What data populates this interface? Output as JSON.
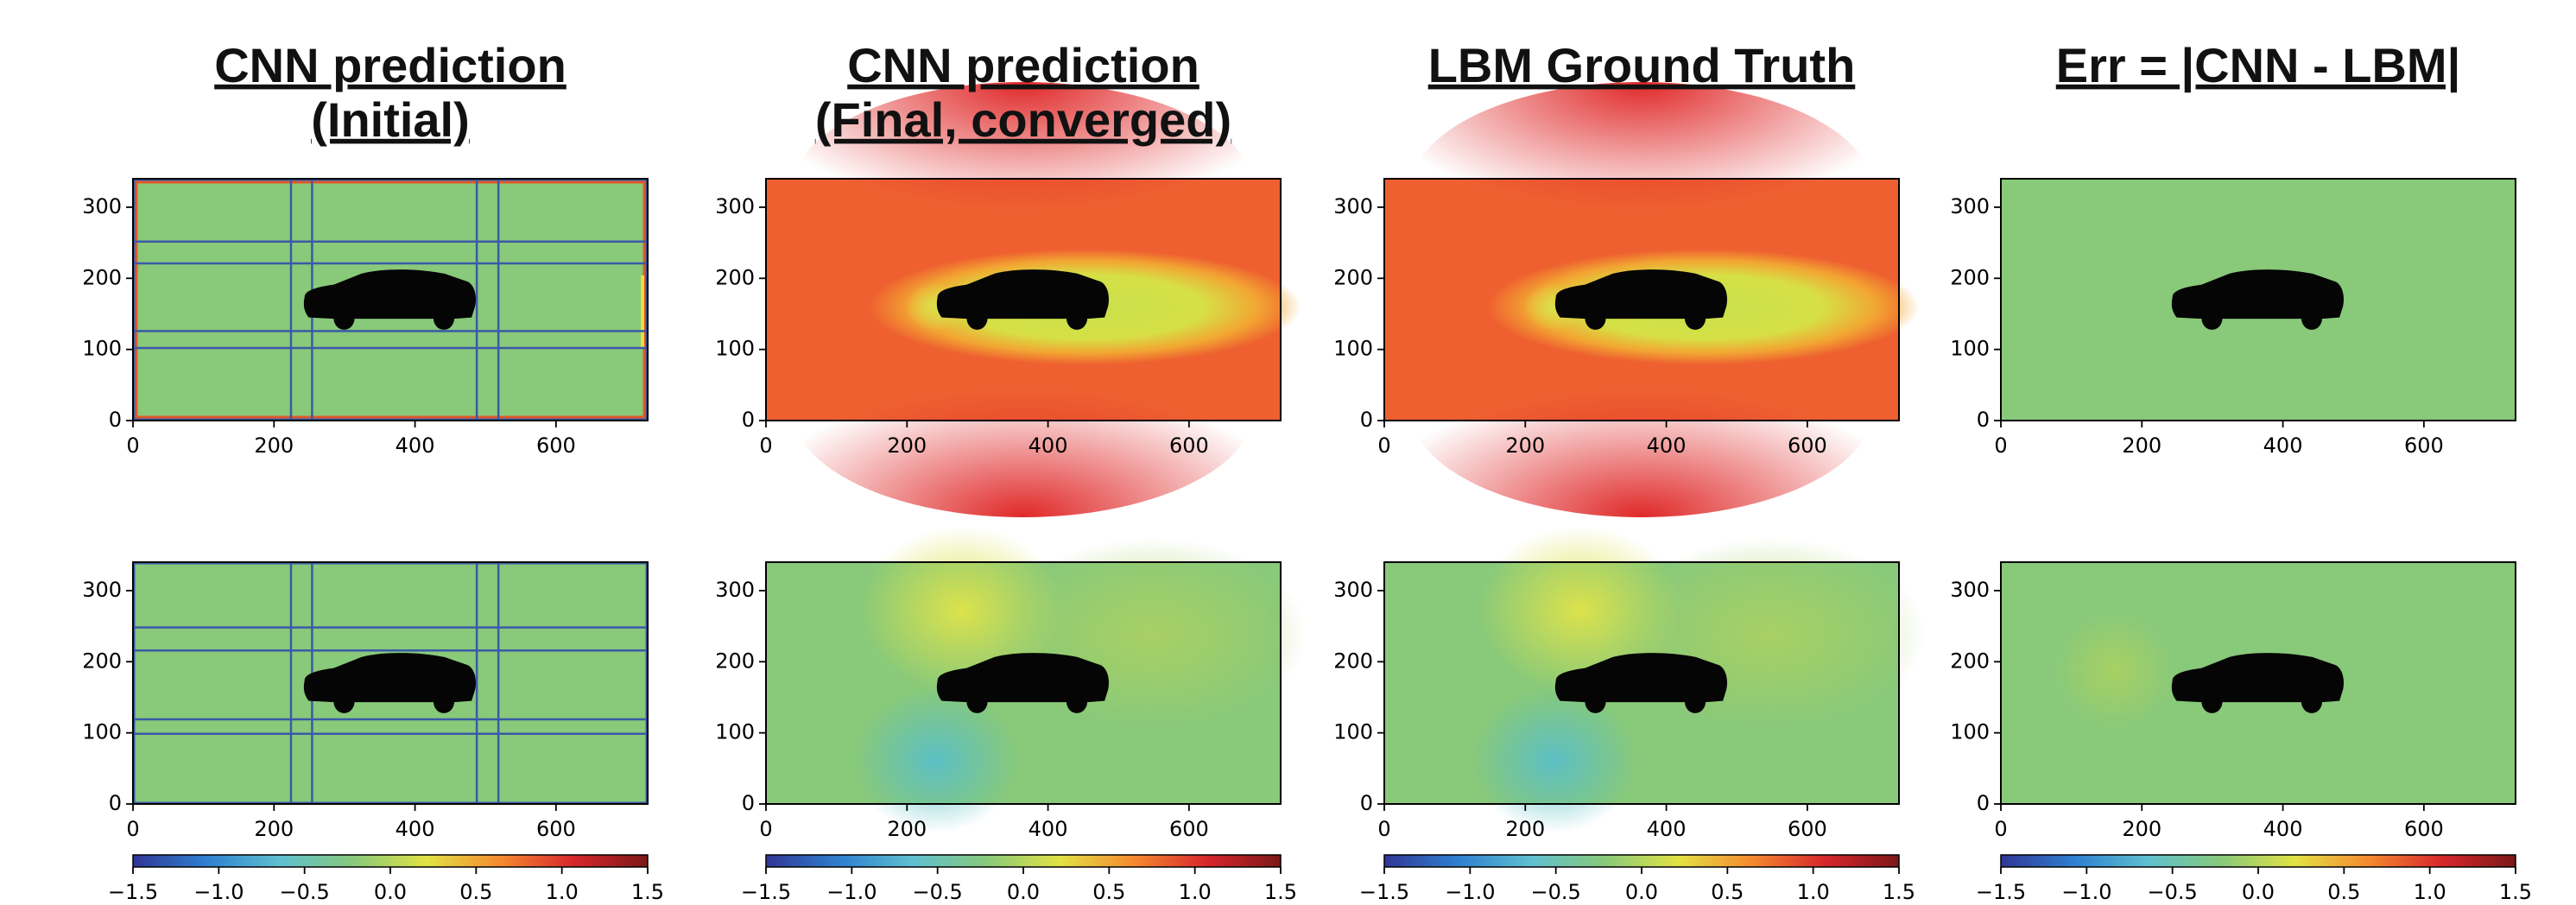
{
  "chart_data": [
    {
      "type": "heatmap",
      "title": [
        "CNN prediction",
        "(Initial)"
      ],
      "xlim": [
        0,
        730
      ],
      "ylim": [
        0,
        340
      ],
      "xticks": [
        0,
        200,
        400,
        600
      ],
      "yticks": [
        0,
        100,
        200,
        300
      ]
    },
    {
      "type": "heatmap",
      "title": [
        "CNN prediction",
        "(Final, converged)"
      ],
      "xlim": [
        0,
        730
      ],
      "ylim": [
        0,
        340
      ],
      "xticks": [
        0,
        200,
        400,
        600
      ],
      "yticks": [
        0,
        100,
        200,
        300
      ]
    },
    {
      "type": "heatmap",
      "title": [
        "LBM Ground Truth"
      ],
      "xlim": [
        0,
        730
      ],
      "ylim": [
        0,
        340
      ],
      "xticks": [
        0,
        200,
        400,
        600
      ],
      "yticks": [
        0,
        100,
        200,
        300
      ]
    },
    {
      "type": "heatmap",
      "title": [
        "Err = |CNN - LBM|"
      ],
      "xlim": [
        0,
        730
      ],
      "ylim": [
        0,
        340
      ],
      "xticks": [
        0,
        200,
        400,
        600
      ],
      "yticks": [
        0,
        100,
        200,
        300
      ]
    },
    {
      "type": "heatmap",
      "xlim": [
        0,
        730
      ],
      "ylim": [
        0,
        340
      ],
      "xticks": [
        0,
        200,
        400,
        600
      ],
      "yticks": [
        0,
        100,
        200,
        300
      ],
      "colorbar": {
        "lim": [
          -1.5,
          1.5
        ],
        "colors": [
          "#313695",
          "#2f7fcf",
          "#5fc0cf",
          "#88c97a",
          "#e2e244",
          "#f58a30",
          "#d7262c",
          "#7a1818"
        ],
        "ticks": [
          {
            "value": -1.5,
            "label": "−1.5"
          },
          {
            "value": -1.0,
            "label": "−1.0"
          },
          {
            "value": -0.5,
            "label": "−0.5"
          },
          {
            "value": 0.0,
            "label": "0.0"
          },
          0.5,
          {
            "value": 1.0,
            "label": "1.0"
          },
          1.5
        ]
      }
    },
    {
      "type": "heatmap",
      "xlim": [
        0,
        730
      ],
      "ylim": [
        0,
        340
      ],
      "xticks": [
        0,
        200,
        400,
        600
      ],
      "yticks": [
        0,
        100,
        200,
        300
      ],
      "colorbar": {
        "lim": [
          -1.5,
          1.5
        ],
        "colors": [
          "#313695",
          "#2f7fcf",
          "#5fc0cf",
          "#88c97a",
          "#e2e244",
          "#f58a30",
          "#d7262c",
          "#7a1818"
        ],
        "ticks": [
          {
            "value": -1.5,
            "label": "−1.5"
          },
          {
            "value": -1.0,
            "label": "−1.0"
          },
          {
            "value": -0.5,
            "label": "−0.5"
          },
          {
            "value": 0.0,
            "label": "0.0"
          },
          0.5,
          {
            "value": 1.0,
            "label": "1.0"
          },
          1.5
        ]
      }
    },
    {
      "type": "heatmap",
      "xlim": [
        0,
        730
      ],
      "ylim": [
        0,
        340
      ],
      "xticks": [
        0,
        200,
        400,
        600
      ],
      "yticks": [
        0,
        100,
        200,
        300
      ],
      "colorbar": {
        "lim": [
          -1.5,
          1.5
        ],
        "colors": [
          "#313695",
          "#2f7fcf",
          "#5fc0cf",
          "#88c97a",
          "#e2e244",
          "#f58a30",
          "#d7262c",
          "#7a1818"
        ],
        "ticks": [
          {
            "value": -1.5,
            "label": "−1.5"
          },
          {
            "value": -1.0,
            "label": "−1.0"
          },
          {
            "value": -0.5,
            "label": "−0.5"
          },
          {
            "value": 0.0,
            "label": "0.0"
          },
          0.5,
          {
            "value": 1.0,
            "label": "1.0"
          },
          1.5
        ]
      }
    },
    {
      "type": "heatmap",
      "xlim": [
        0,
        730
      ],
      "ylim": [
        0,
        340
      ],
      "xticks": [
        0,
        200,
        400,
        600
      ],
      "yticks": [
        0,
        100,
        200,
        300
      ],
      "colorbar": {
        "lim": [
          -1.5,
          1.5
        ],
        "colors": [
          "#313695",
          "#2f7fcf",
          "#5fc0cf",
          "#88c97a",
          "#e2e244",
          "#f58a30",
          "#d7262c",
          "#7a1818"
        ],
        "ticks": [
          {
            "value": -1.5,
            "label": "−1.5"
          },
          {
            "value": -1.0,
            "label": "−1.0"
          },
          {
            "value": -0.5,
            "label": "−0.5"
          },
          {
            "value": 0.0,
            "label": "0.0"
          },
          0.5,
          {
            "value": 1.0,
            "label": "1.0"
          },
          1.5
        ]
      }
    }
  ]
}
